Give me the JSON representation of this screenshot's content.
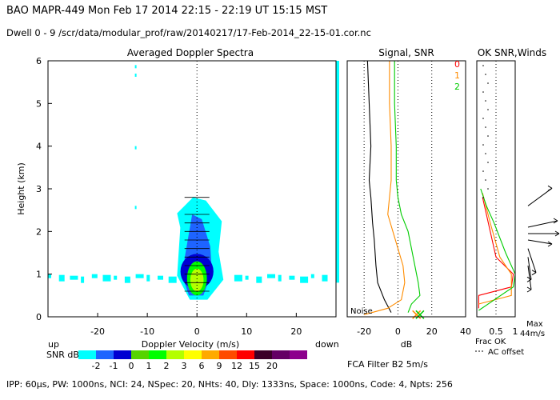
{
  "header": {
    "line1": "BAO  MAPR-449  Mon Feb 17 2014 22:15 - 22:19 UT 15:15 MST",
    "line2": "Dwell  0 - 9  /scr/data/modular_prof/raw/20140217/17-Feb-2014_22-15-01.cor.nc"
  },
  "footer": "IPP: 60μs,  PW: 1000ns,  NCI: 24,  NSpec: 20, NHts: 40,  Dly: 1333ns,  Space: 1000ns,  Code: 4,  Npts: 256",
  "colors": {
    "snr_scale": [
      "#00ffff",
      "#1e64ff",
      "#0000d2",
      "#55d400",
      "#00ff00",
      "#b4ff00",
      "#ffff00",
      "#ffaa00",
      "#ff4a00",
      "#ff0000",
      "#3c0028",
      "#640064",
      "#8c008c"
    ],
    "beam0": "#000000",
    "beam1": "#ff8c00",
    "beam2": "#00cc00"
  },
  "chart_data": [
    {
      "type": "heatmap",
      "title": "Averaged Doppler Spectra",
      "xlabel": "Doppler Velocity (m/s)",
      "ylabel": "Height (km)",
      "xlim": [
        -30,
        28
      ],
      "ylim": [
        0,
        6
      ],
      "x_ticks": [
        -20,
        -10,
        0,
        10,
        20
      ],
      "y_ticks": [
        0,
        1,
        2,
        3,
        4,
        5,
        6
      ],
      "direction_labels": {
        "left": "up",
        "right": "down"
      },
      "colorbar": {
        "label": "SNR dB",
        "tick_labels": [
          "-2",
          "-1",
          "0",
          "1",
          "2",
          "3",
          "6",
          "9",
          "12",
          "15",
          "20"
        ]
      },
      "echo_regions": [
        {
          "snr_level": "-2",
          "x": [
            -4,
            5
          ],
          "y": [
            0.4,
            2.8
          ]
        },
        {
          "snr_level": "0",
          "x": [
            -3,
            3
          ],
          "y": [
            0.5,
            2.4
          ]
        },
        {
          "snr_level": "2",
          "x": [
            -2,
            2
          ],
          "y": [
            0.5,
            1.3
          ]
        },
        {
          "snr_level": "-2",
          "x": [
            -30,
            28
          ],
          "y": [
            0.8,
            1.0
          ]
        },
        {
          "snr_level": "-2",
          "x": [
            28,
            28.5
          ],
          "y": [
            0.8,
            6
          ]
        }
      ]
    },
    {
      "type": "line",
      "title": "Signal, SNR",
      "xlabel": "dB",
      "xlim": [
        -30,
        40
      ],
      "ylim": [
        0,
        6
      ],
      "x_ticks": [
        -20,
        0,
        20,
        40
      ],
      "annotation": "Noise",
      "legend": [
        "0",
        "1",
        "2"
      ],
      "series": [
        {
          "name": "0",
          "x": [
            -18,
            -17,
            -16,
            -17,
            -16,
            -15,
            -14,
            -13,
            -12,
            -8,
            -4
          ],
          "y": [
            6,
            5,
            4,
            3.2,
            2.8,
            2.2,
            1.8,
            1.2,
            0.8,
            0.4,
            0.1
          ]
        },
        {
          "name": "1",
          "x": [
            -5,
            -5,
            -4,
            -4,
            -5,
            -6,
            -3,
            0,
            3,
            4,
            2,
            -6,
            -20
          ],
          "y": [
            6,
            5,
            4,
            3.2,
            2.8,
            2.4,
            2,
            1.6,
            1.2,
            0.8,
            0.4,
            0.2,
            0.05
          ]
        },
        {
          "name": "2",
          "x": [
            -2,
            -2,
            -1,
            -1,
            0,
            2,
            6,
            8,
            10,
            12,
            13,
            8,
            6
          ],
          "y": [
            6,
            5,
            4,
            3.2,
            2.8,
            2.4,
            2,
            1.6,
            1.2,
            0.8,
            0.5,
            0.3,
            0.1
          ]
        }
      ],
      "markers": [
        {
          "series": "1",
          "x": 11,
          "y": 0.05
        },
        {
          "series": "2",
          "x": 13,
          "y": 0.05
        }
      ]
    },
    {
      "type": "line",
      "title": "OK SNR,Winds",
      "xlabel": "Frac OK",
      "xlim": [
        0,
        1
      ],
      "ylim": [
        0,
        6
      ],
      "x_ticks": [
        "0.5",
        "1"
      ],
      "note": "AC offset",
      "wind_speed_max": "Max 44m/s",
      "series": [
        {
          "name": "0",
          "x": [
            0.05,
            0.05,
            0.9,
            0.95,
            0.5,
            0.3,
            0.15
          ],
          "y": [
            0.2,
            0.5,
            0.7,
            1.0,
            1.4,
            2.2,
            2.8
          ]
        },
        {
          "name": "1",
          "x": [
            0.05,
            0.9,
            0.9,
            0.6,
            0.35,
            0.15
          ],
          "y": [
            0.3,
            0.5,
            1.0,
            1.4,
            2.2,
            2.9
          ]
        },
        {
          "name": "2",
          "x": [
            0.05,
            0.95,
            1.0,
            0.75,
            0.45,
            0.25,
            0.1
          ],
          "y": [
            0.15,
            0.7,
            1.0,
            1.5,
            2.2,
            2.6,
            3.0
          ]
        }
      ]
    }
  ]
}
